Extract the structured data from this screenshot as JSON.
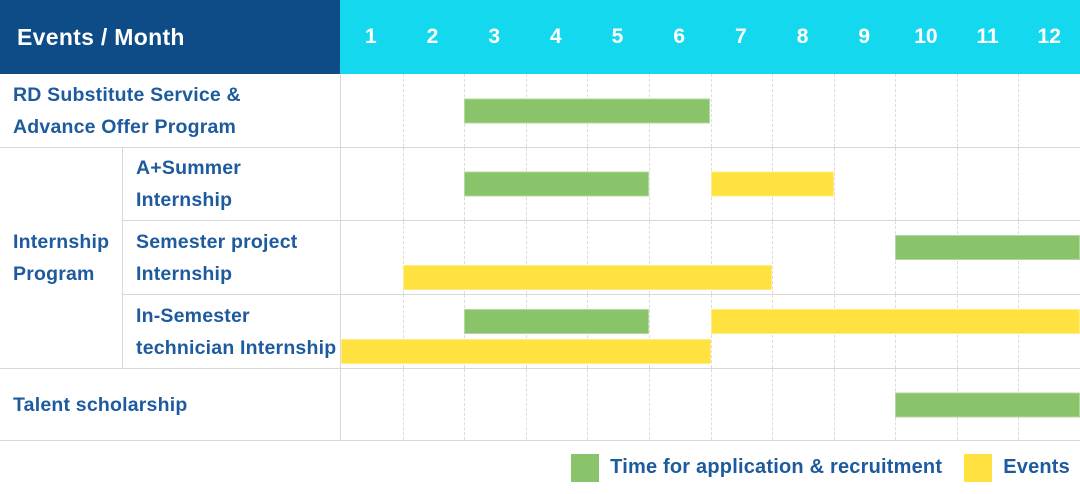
{
  "header": {
    "label": "Events / Month"
  },
  "colors": {
    "header_bg": "#0E4C88",
    "months_bg": "#14D9EE",
    "label_text": "#1D5A9E",
    "grid_line": "#DCDCDC",
    "application_green": "#8AC46A",
    "events_yellow": "#FFE23F"
  },
  "chart_data": {
    "type": "bar",
    "variant": "gantt-schedule",
    "title": "Events / Month",
    "x_label": "Month",
    "x_ticks": [
      "1",
      "2",
      "3",
      "4",
      "5",
      "6",
      "7",
      "8",
      "9",
      "10",
      "11",
      "12"
    ],
    "x_range": [
      1,
      12
    ],
    "grid": true,
    "legend_position": "bottom-right",
    "series_legend": [
      {
        "key": "application",
        "label": "Time for application & recruitment",
        "color": "#8AC46A"
      },
      {
        "key": "events",
        "label": "Events",
        "color": "#FFE23F"
      }
    ],
    "group_label": "Internship\nProgram",
    "rows": [
      {
        "group": "",
        "label": "RD Substitute Service &\nAdvance Offer Program",
        "bars": [
          {
            "series": "application",
            "start_month": 3,
            "end_month": 6,
            "lane": "single"
          }
        ]
      },
      {
        "group": "Internship Program",
        "label": "A+Summer\nInternship",
        "bars": [
          {
            "series": "application",
            "start_month": 3,
            "end_month": 5,
            "lane": "single"
          },
          {
            "series": "events",
            "start_month": 7,
            "end_month": 8,
            "lane": "single"
          }
        ]
      },
      {
        "group": "Internship Program",
        "label": "Semester project\nInternship",
        "bars": [
          {
            "series": "application",
            "start_month": 10,
            "end_month": 12,
            "lane": "top"
          },
          {
            "series": "events",
            "start_month": 2,
            "end_month": 7,
            "lane": "bottom"
          }
        ]
      },
      {
        "group": "Internship Program",
        "label": "In-Semester\ntechnician Internship",
        "bars": [
          {
            "series": "application",
            "start_month": 3,
            "end_month": 5,
            "lane": "top"
          },
          {
            "series": "events",
            "start_month": 7,
            "end_month": 12,
            "lane": "top"
          },
          {
            "series": "events",
            "start_month": 1,
            "end_month": 6,
            "lane": "bottom"
          }
        ]
      },
      {
        "group": "",
        "label": "Talent scholarship",
        "bars": [
          {
            "series": "application",
            "start_month": 10,
            "end_month": 12,
            "lane": "single"
          }
        ]
      }
    ]
  }
}
